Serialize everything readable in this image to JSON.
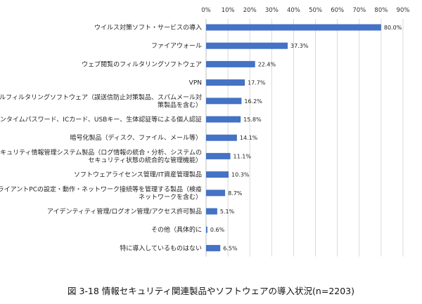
{
  "chart_data": {
    "type": "bar",
    "orientation": "horizontal",
    "title": "",
    "xlabel": "",
    "ylabel": "",
    "xlim": [
      0,
      90
    ],
    "ticks": [
      "0%",
      "10%",
      "20%",
      "30%",
      "40%",
      "50%",
      "60%",
      "70%",
      "80%",
      "90%"
    ],
    "grid": true,
    "bar_color": "#4472C4",
    "categories": [
      [
        "ウイルス対策ソフト・サービスの導入"
      ],
      [
        "ファイアウォール"
      ],
      [
        "ウェブ閲覧のフィルタリングソフトウェア"
      ],
      [
        "VPN"
      ],
      [
        "メールフィルタリングソフトウェア（誤送信防止対策製品、スパムメール対",
        "策製品を含む）"
      ],
      [
        "ワンタイムパスワード、ICカード、USBキー、生体認証等による個人認証"
      ],
      [
        "暗号化製品（ディスク、ファイル、メール等）"
      ],
      [
        "セキュリティ情報管理システム製品（ログ情報の統合・分析、システムの",
        "セキュリティ状態の統合的な管理機能）"
      ],
      [
        "ソフトウェアライセンス管理/IT資産管理製品"
      ],
      [
        "クライアントPCの設定・動作・ネットワーク接続等を管理する製品（検疫",
        "ネットワークを含む）"
      ],
      [
        "アイデンティティ管理/ログオン管理/アクセス許可製品"
      ],
      [
        "その他（具体的に"
      ],
      [
        "特に導入しているものはない"
      ]
    ],
    "values": [
      80.0,
      37.3,
      22.4,
      17.7,
      16.2,
      15.8,
      14.1,
      11.1,
      10.3,
      8.7,
      5.1,
      0.6,
      6.5
    ],
    "value_labels": [
      "80.0%",
      "37.3%",
      "22.4%",
      "17.7%",
      "16.2%",
      "15.8%",
      "14.1%",
      "11.1%",
      "10.3%",
      "8.7%",
      "5.1%",
      "0.6%",
      "6.5%"
    ]
  },
  "caption": "図 3-18  情報セキュリティ関連製品やソフトウェアの導入状況(n=2203)"
}
